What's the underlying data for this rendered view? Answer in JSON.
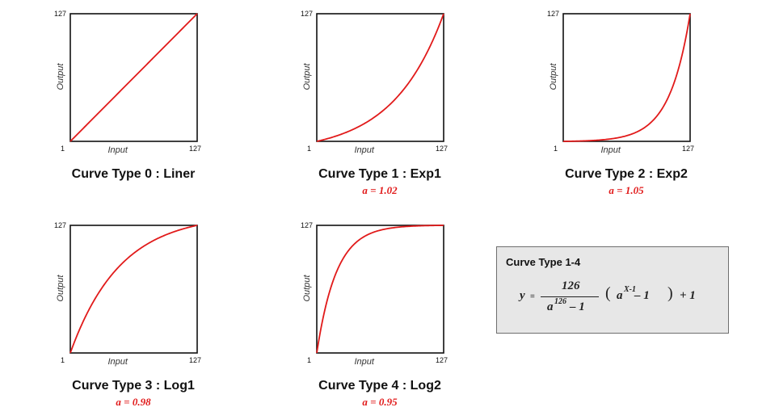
{
  "chart_data": [
    {
      "type": "line",
      "title": "Curve Type 0 : Liner",
      "param": "",
      "xlabel": "Input",
      "ylabel": "Output",
      "xlim": [
        1,
        127
      ],
      "ylim": [
        1,
        127
      ],
      "x_ticks": [
        "1",
        "127"
      ],
      "y_ticks": [
        "127"
      ],
      "curve": {
        "kind": "linear"
      },
      "color": "#e11a1a"
    },
    {
      "type": "line",
      "title": "Curve Type 1 : Exp1",
      "param": "a = 1.02",
      "xlabel": "Input",
      "ylabel": "Output",
      "xlim": [
        1,
        127
      ],
      "ylim": [
        1,
        127
      ],
      "x_ticks": [
        "1",
        "127"
      ],
      "y_ticks": [
        "127"
      ],
      "curve": {
        "kind": "exp",
        "a": 1.02
      },
      "color": "#e11a1a"
    },
    {
      "type": "line",
      "title": "Curve Type 2 : Exp2",
      "param": "a = 1.05",
      "xlabel": "Input",
      "ylabel": "Output",
      "xlim": [
        1,
        127
      ],
      "ylim": [
        1,
        127
      ],
      "x_ticks": [
        "1",
        "127"
      ],
      "y_ticks": [
        "127"
      ],
      "curve": {
        "kind": "exp",
        "a": 1.05
      },
      "color": "#e11a1a"
    },
    {
      "type": "line",
      "title": "Curve Type 3 : Log1",
      "param": "a = 0.98",
      "xlabel": "Input",
      "ylabel": "Output",
      "xlim": [
        1,
        127
      ],
      "ylim": [
        1,
        127
      ],
      "x_ticks": [
        "1",
        "127"
      ],
      "y_ticks": [
        "127"
      ],
      "curve": {
        "kind": "exp",
        "a": 0.98
      },
      "color": "#e11a1a"
    },
    {
      "type": "line",
      "title": "Curve Type 4 : Log2",
      "param": "a = 0.95",
      "xlabel": "Input",
      "ylabel": "Output",
      "xlim": [
        1,
        127
      ],
      "ylim": [
        1,
        127
      ],
      "x_ticks": [
        "1",
        "127"
      ],
      "y_ticks": [
        "127"
      ],
      "curve": {
        "kind": "exp",
        "a": 0.95
      },
      "color": "#e11a1a"
    }
  ],
  "formula": {
    "title": "Curve Type 1-4",
    "y": "y",
    "equals": "=",
    "numerator": "126",
    "den_base": "a",
    "den_exp": "126",
    "den_minus": "– 1",
    "open_paren": "(",
    "term_base": "a",
    "term_exp": "X-1",
    "term_minus": "– 1",
    "close_paren": ")",
    "tail": "+ 1"
  }
}
